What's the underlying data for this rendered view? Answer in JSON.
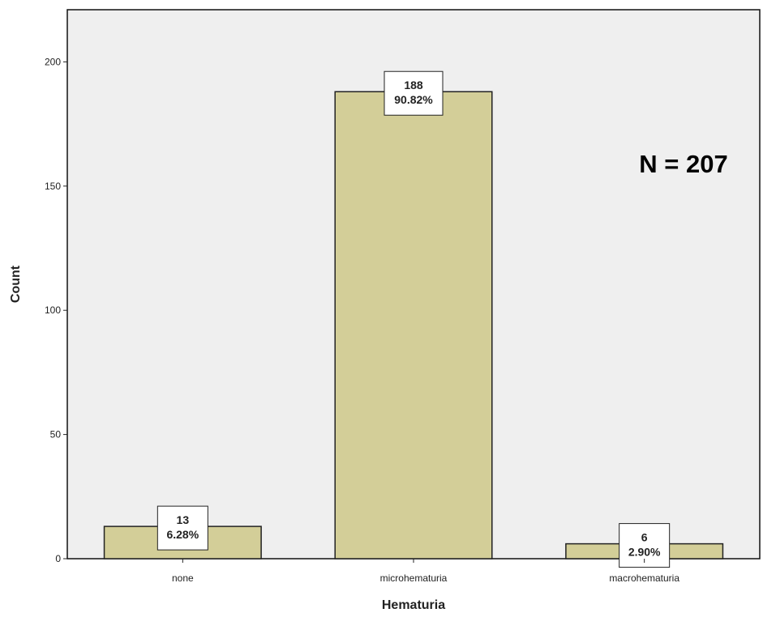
{
  "chart_data": {
    "type": "bar",
    "xlabel": "Hematuria",
    "ylabel": "Count",
    "categories": [
      "none",
      "microhematuria",
      "macrohematuria"
    ],
    "values": [
      13,
      188,
      6
    ],
    "percent_labels": [
      "6.28%",
      "90.82%",
      "2.90%"
    ],
    "count_labels": [
      "13",
      "188",
      "6"
    ],
    "ylim": [
      0,
      221
    ],
    "yticks": [
      0,
      50,
      100,
      150,
      200
    ],
    "ytick_labels": [
      "0",
      "50",
      "100",
      "150",
      "200"
    ],
    "annotation": "N = 207",
    "grid": false,
    "colors": {
      "plot_background": "#efefef",
      "bar_fill": "#d3ce98",
      "bar_stroke": "#222222",
      "label_box": "#ffffff"
    }
  }
}
